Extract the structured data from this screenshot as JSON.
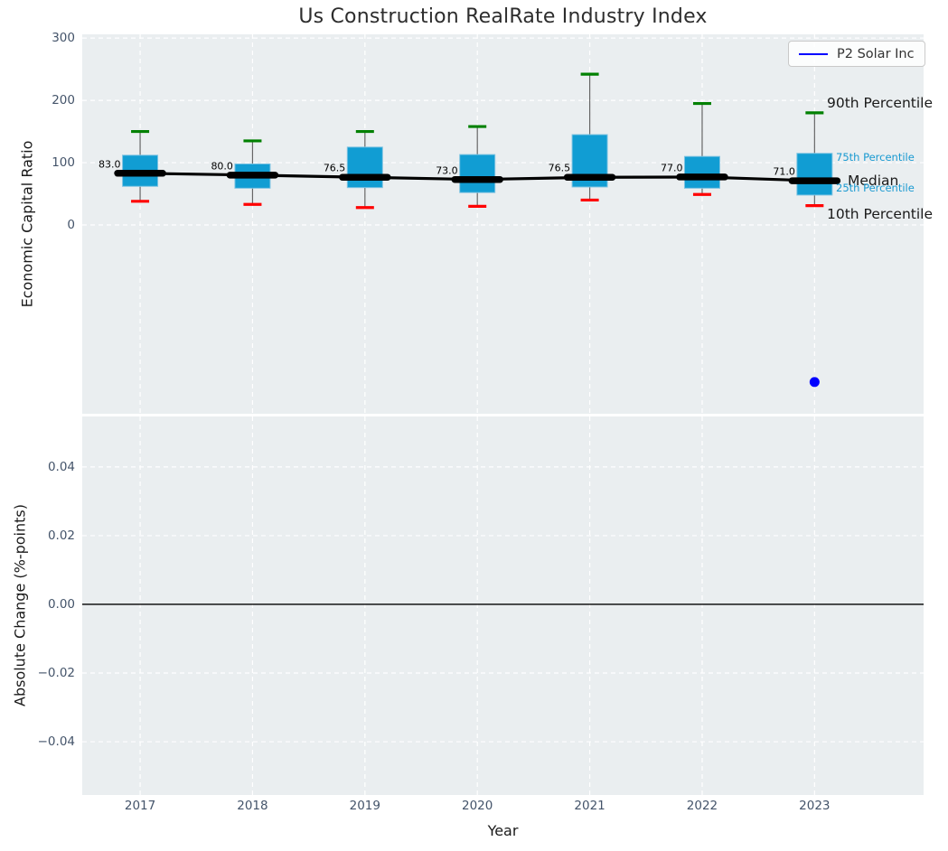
{
  "figure": {
    "title": "Us Construction RealRate Industry Index",
    "background": "#ffffff"
  },
  "legend": {
    "label": "P2 Solar Inc",
    "color": "#0000ff"
  },
  "annotations": {
    "p90": "90th Percentile",
    "p75": "75th Percentile",
    "median": "Median",
    "p25": "25th Percentile",
    "p10": "10th Percentile"
  },
  "colors": {
    "plot_bg": "#eaeef0",
    "grid": "#ffffff",
    "tick": "#44546a",
    "text": "#1a1a1a",
    "box_fill": "#119dd3",
    "box_edge": "#7ec3e2",
    "whisker": "#666666",
    "cap_high": "#008000",
    "cap_low": "#ff0000",
    "median": "#000000",
    "point": "#0000ff",
    "annotation_blue": "#1899d1"
  },
  "chart_data": [
    {
      "type": "box",
      "title": "Us Construction RealRate Industry Index",
      "ylabel": "Economic Capital Ratio",
      "categories": [
        "2017",
        "2018",
        "2019",
        "2020",
        "2021",
        "2022",
        "2023"
      ],
      "yticks": [
        300,
        200,
        100,
        0
      ],
      "ylim": [
        -303,
        306
      ],
      "xlim": [
        2016.485,
        2023.97
      ],
      "grid": true,
      "legend_position": "upper right",
      "boxes": [
        {
          "year": 2017,
          "p10": 38,
          "q1": 62,
          "median": 83,
          "q3": 112,
          "p90": 150,
          "label": "83.0"
        },
        {
          "year": 2018,
          "p10": 33,
          "q1": 59,
          "median": 80,
          "q3": 98,
          "p90": 135,
          "label": "80.0"
        },
        {
          "year": 2019,
          "p10": 28,
          "q1": 60,
          "median": 76.5,
          "q3": 125,
          "p90": 150,
          "label": "76.5"
        },
        {
          "year": 2020,
          "p10": 30,
          "q1": 52,
          "median": 73,
          "q3": 113,
          "p90": 158,
          "label": "73.0"
        },
        {
          "year": 2021,
          "p10": 40,
          "q1": 61,
          "median": 76.5,
          "q3": 145,
          "p90": 242,
          "label": "76.5"
        },
        {
          "year": 2022,
          "p10": 49,
          "q1": 59,
          "median": 77,
          "q3": 110,
          "p90": 195,
          "label": "77.0"
        },
        {
          "year": 2023,
          "p10": 31,
          "q1": 48,
          "median": 71,
          "q3": 115,
          "p90": 180,
          "label": "71.0"
        }
      ],
      "series": [
        {
          "name": "P2 Solar Inc",
          "color": "#0000ff",
          "points": [
            {
              "x": 2023,
              "y": -252
            }
          ]
        }
      ]
    },
    {
      "type": "line",
      "ylabel": "Absolute Change (%-points)",
      "xlabel": "Year",
      "ytick_labels": [
        "0.04",
        "0.02",
        "0.00",
        "−0.02",
        "−0.04"
      ],
      "ytick_values": [
        0.04,
        0.02,
        0,
        -0.02,
        -0.04
      ],
      "ylim": [
        -0.0555,
        0.0547
      ],
      "zero_line": 0,
      "grid": true,
      "series": []
    }
  ]
}
